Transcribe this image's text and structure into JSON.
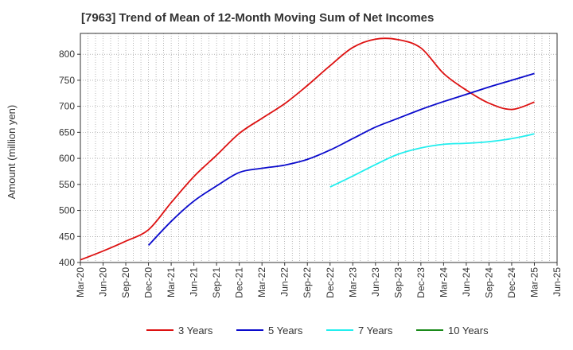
{
  "chart_data": {
    "type": "line",
    "title": "[7963]  Trend of Mean of 12-Month Moving Sum of Net Incomes",
    "ylabel": "Amount (million yen)",
    "xlabel": "",
    "ylim": [
      400,
      840
    ],
    "yticks": [
      400,
      450,
      500,
      550,
      600,
      650,
      700,
      750,
      800
    ],
    "categories": [
      "Mar-20",
      "Jun-20",
      "Sep-20",
      "Dec-20",
      "Mar-21",
      "Jun-21",
      "Sep-21",
      "Dec-21",
      "Mar-22",
      "Jun-22",
      "Sep-22",
      "Dec-22",
      "Mar-23",
      "Jun-23",
      "Sep-23",
      "Dec-23",
      "Mar-24",
      "Jun-24",
      "Sep-24",
      "Dec-24",
      "Mar-25",
      "Jun-25"
    ],
    "grid": true,
    "legend_position": "bottom",
    "series": [
      {
        "name": "3 Years",
        "color": "#dd1111",
        "values": [
          405,
          422,
          441,
          463,
          515,
          565,
          606,
          648,
          677,
          705,
          740,
          778,
          813,
          829,
          828,
          812,
          763,
          731,
          706,
          694,
          708,
          null
        ]
      },
      {
        "name": "5 Years",
        "color": "#0a0acc",
        "values": [
          null,
          null,
          null,
          433,
          479,
          518,
          547,
          573,
          581,
          587,
          598,
          616,
          638,
          660,
          677,
          694,
          709,
          723,
          737,
          750,
          763,
          null
        ]
      },
      {
        "name": "7 Years",
        "color": "#22eeee",
        "values": [
          null,
          null,
          null,
          null,
          null,
          null,
          null,
          null,
          null,
          null,
          null,
          545,
          566,
          588,
          608,
          620,
          627,
          629,
          632,
          638,
          647,
          null
        ]
      },
      {
        "name": "10 Years",
        "color": "#1a8a1a",
        "values": [
          null,
          null,
          null,
          null,
          null,
          null,
          null,
          null,
          null,
          null,
          null,
          null,
          null,
          null,
          null,
          null,
          null,
          null,
          null,
          null,
          null,
          null
        ]
      }
    ]
  }
}
